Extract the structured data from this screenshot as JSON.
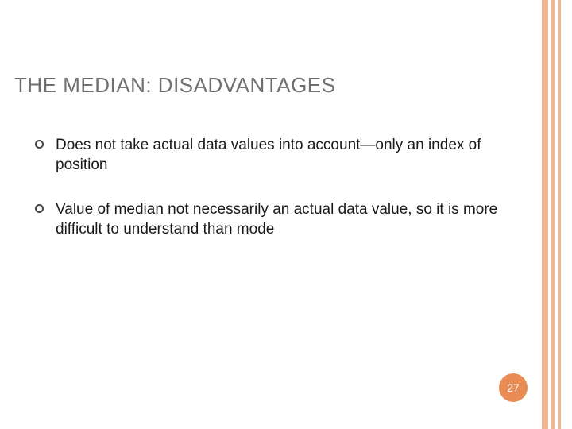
{
  "title": "THE MEDIAN: DISADVANTAGES",
  "bullets": [
    "Does not take actual data values into account—only an index of position",
    "Value of median not necessarily an actual data value, so it is more difficult to understand than mode"
  ],
  "pageNumber": "27",
  "colors": {
    "accent": "#e88c54",
    "stripe": "#f2b690",
    "titleColor": "#6f6f6f",
    "textColor": "#1a1a1a",
    "background": "#ffffff"
  },
  "typography": {
    "titleFontSize": 26,
    "bodyFontSize": 19,
    "badgeFontSize": 14
  }
}
